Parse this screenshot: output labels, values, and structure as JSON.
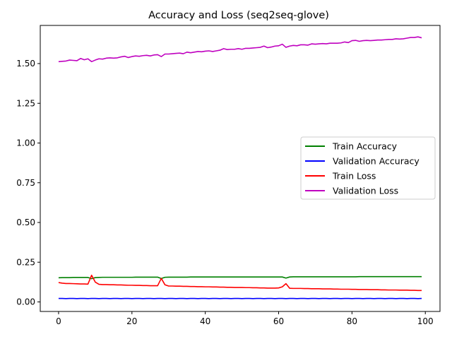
{
  "chart_data": {
    "type": "line",
    "title": "Accuracy and Loss (seq2seq-glove)",
    "xlabel": "",
    "ylabel": "",
    "xlim": [
      -5,
      104
    ],
    "ylim": [
      -0.06,
      1.74
    ],
    "xticks": [
      0,
      20,
      40,
      60,
      80,
      100
    ],
    "yticks": [
      0.0,
      0.25,
      0.5,
      0.75,
      1.0,
      1.25,
      1.5
    ],
    "ytick_labels": [
      "0.00",
      "0.25",
      "0.50",
      "0.75",
      "1.00",
      "1.25",
      "1.50"
    ],
    "grid": false,
    "legend_position": "center-right",
    "series": [
      {
        "name": "Train Accuracy",
        "color": "#008000",
        "x": [
          0,
          1,
          2,
          3,
          4,
          5,
          6,
          7,
          8,
          9,
          10,
          11,
          12,
          13,
          14,
          15,
          16,
          17,
          18,
          19,
          20,
          21,
          22,
          23,
          24,
          25,
          26,
          27,
          28,
          29,
          30,
          31,
          32,
          33,
          34,
          35,
          36,
          37,
          38,
          39,
          40,
          41,
          42,
          43,
          44,
          45,
          46,
          47,
          48,
          49,
          50,
          51,
          52,
          53,
          54,
          55,
          56,
          57,
          58,
          59,
          60,
          61,
          62,
          63,
          64,
          65,
          66,
          67,
          68,
          69,
          70,
          71,
          72,
          73,
          74,
          75,
          76,
          77,
          78,
          79,
          80,
          81,
          82,
          83,
          84,
          85,
          86,
          87,
          88,
          89,
          90,
          91,
          92,
          93,
          94,
          95,
          96,
          97,
          98,
          99
        ],
        "y": [
          0.152,
          0.153,
          0.153,
          0.153,
          0.154,
          0.154,
          0.154,
          0.154,
          0.154,
          0.146,
          0.153,
          0.154,
          0.155,
          0.155,
          0.155,
          0.155,
          0.155,
          0.155,
          0.155,
          0.155,
          0.155,
          0.156,
          0.156,
          0.156,
          0.156,
          0.156,
          0.156,
          0.156,
          0.147,
          0.155,
          0.156,
          0.156,
          0.156,
          0.156,
          0.156,
          0.156,
          0.157,
          0.157,
          0.157,
          0.157,
          0.157,
          0.157,
          0.157,
          0.157,
          0.157,
          0.157,
          0.157,
          0.157,
          0.157,
          0.157,
          0.157,
          0.157,
          0.157,
          0.157,
          0.157,
          0.157,
          0.157,
          0.157,
          0.157,
          0.157,
          0.157,
          0.157,
          0.15,
          0.157,
          0.158,
          0.158,
          0.158,
          0.158,
          0.158,
          0.158,
          0.158,
          0.158,
          0.158,
          0.158,
          0.158,
          0.158,
          0.158,
          0.158,
          0.158,
          0.158,
          0.158,
          0.158,
          0.159,
          0.159,
          0.159,
          0.159,
          0.159,
          0.159,
          0.159,
          0.159,
          0.159,
          0.159,
          0.159,
          0.159,
          0.159,
          0.159,
          0.159,
          0.159,
          0.159,
          0.159
        ]
      },
      {
        "name": "Validation Accuracy",
        "color": "#0000ff",
        "x": [
          0,
          1,
          2,
          3,
          4,
          5,
          6,
          7,
          8,
          9,
          10,
          11,
          12,
          13,
          14,
          15,
          16,
          17,
          18,
          19,
          20,
          21,
          22,
          23,
          24,
          25,
          26,
          27,
          28,
          29,
          30,
          31,
          32,
          33,
          34,
          35,
          36,
          37,
          38,
          39,
          40,
          41,
          42,
          43,
          44,
          45,
          46,
          47,
          48,
          49,
          50,
          51,
          52,
          53,
          54,
          55,
          56,
          57,
          58,
          59,
          60,
          61,
          62,
          63,
          64,
          65,
          66,
          67,
          68,
          69,
          70,
          71,
          72,
          73,
          74,
          75,
          76,
          77,
          78,
          79,
          80,
          81,
          82,
          83,
          84,
          85,
          86,
          87,
          88,
          89,
          90,
          91,
          92,
          93,
          94,
          95,
          96,
          97,
          98,
          99
        ],
        "y": [
          0.022,
          0.022,
          0.021,
          0.022,
          0.022,
          0.021,
          0.022,
          0.022,
          0.021,
          0.022,
          0.022,
          0.021,
          0.022,
          0.022,
          0.021,
          0.022,
          0.022,
          0.021,
          0.022,
          0.022,
          0.021,
          0.022,
          0.022,
          0.021,
          0.022,
          0.022,
          0.021,
          0.022,
          0.022,
          0.021,
          0.022,
          0.022,
          0.021,
          0.022,
          0.022,
          0.021,
          0.022,
          0.022,
          0.021,
          0.022,
          0.022,
          0.021,
          0.022,
          0.022,
          0.021,
          0.022,
          0.022,
          0.021,
          0.022,
          0.022,
          0.021,
          0.022,
          0.022,
          0.021,
          0.022,
          0.022,
          0.021,
          0.022,
          0.022,
          0.021,
          0.022,
          0.022,
          0.021,
          0.022,
          0.022,
          0.021,
          0.022,
          0.022,
          0.021,
          0.022,
          0.022,
          0.021,
          0.022,
          0.022,
          0.021,
          0.022,
          0.022,
          0.021,
          0.022,
          0.022,
          0.021,
          0.022,
          0.022,
          0.021,
          0.022,
          0.022,
          0.021,
          0.022,
          0.022,
          0.021,
          0.022,
          0.022,
          0.021,
          0.022,
          0.022,
          0.021,
          0.022,
          0.022,
          0.021,
          0.022
        ]
      },
      {
        "name": "Train Loss",
        "color": "#ff0000",
        "x": [
          0,
          1,
          2,
          3,
          4,
          5,
          6,
          7,
          8,
          9,
          10,
          11,
          12,
          13,
          14,
          15,
          16,
          17,
          18,
          19,
          20,
          21,
          22,
          23,
          24,
          25,
          26,
          27,
          28,
          29,
          30,
          31,
          32,
          33,
          34,
          35,
          36,
          37,
          38,
          39,
          40,
          41,
          42,
          43,
          44,
          45,
          46,
          47,
          48,
          49,
          50,
          51,
          52,
          53,
          54,
          55,
          56,
          57,
          58,
          59,
          60,
          61,
          62,
          63,
          64,
          65,
          66,
          67,
          68,
          69,
          70,
          71,
          72,
          73,
          74,
          75,
          76,
          77,
          78,
          79,
          80,
          81,
          82,
          83,
          84,
          85,
          86,
          87,
          88,
          89,
          90,
          91,
          92,
          93,
          94,
          95,
          96,
          97,
          98,
          99
        ],
        "y": [
          0.122,
          0.118,
          0.116,
          0.116,
          0.115,
          0.114,
          0.113,
          0.113,
          0.112,
          0.168,
          0.125,
          0.111,
          0.109,
          0.109,
          0.108,
          0.108,
          0.107,
          0.107,
          0.106,
          0.105,
          0.105,
          0.104,
          0.104,
          0.103,
          0.103,
          0.102,
          0.102,
          0.102,
          0.148,
          0.108,
          0.1,
          0.1,
          0.099,
          0.099,
          0.098,
          0.098,
          0.097,
          0.097,
          0.096,
          0.096,
          0.095,
          0.095,
          0.094,
          0.094,
          0.093,
          0.093,
          0.092,
          0.092,
          0.091,
          0.091,
          0.091,
          0.09,
          0.09,
          0.089,
          0.089,
          0.088,
          0.088,
          0.087,
          0.087,
          0.087,
          0.088,
          0.095,
          0.115,
          0.086,
          0.085,
          0.085,
          0.085,
          0.084,
          0.084,
          0.083,
          0.083,
          0.083,
          0.082,
          0.082,
          0.082,
          0.081,
          0.081,
          0.08,
          0.08,
          0.08,
          0.079,
          0.079,
          0.078,
          0.078,
          0.078,
          0.077,
          0.077,
          0.077,
          0.076,
          0.076,
          0.075,
          0.075,
          0.075,
          0.074,
          0.074,
          0.074,
          0.073,
          0.073,
          0.072,
          0.072
        ]
      },
      {
        "name": "Validation Loss",
        "color": "#bf00bf",
        "x": [
          0,
          1,
          2,
          3,
          4,
          5,
          6,
          7,
          8,
          9,
          10,
          11,
          12,
          13,
          14,
          15,
          16,
          17,
          18,
          19,
          20,
          21,
          22,
          23,
          24,
          25,
          26,
          27,
          28,
          29,
          30,
          31,
          32,
          33,
          34,
          35,
          36,
          37,
          38,
          39,
          40,
          41,
          42,
          43,
          44,
          45,
          46,
          47,
          48,
          49,
          50,
          51,
          52,
          53,
          54,
          55,
          56,
          57,
          58,
          59,
          60,
          61,
          62,
          63,
          64,
          65,
          66,
          67,
          68,
          69,
          70,
          71,
          72,
          73,
          74,
          75,
          76,
          77,
          78,
          79,
          80,
          81,
          82,
          83,
          84,
          85,
          86,
          87,
          88,
          89,
          90,
          91,
          92,
          93,
          94,
          95,
          96,
          97,
          98,
          99
        ],
        "y": [
          1.512,
          1.514,
          1.516,
          1.522,
          1.52,
          1.518,
          1.532,
          1.524,
          1.53,
          1.512,
          1.522,
          1.53,
          1.528,
          1.534,
          1.536,
          1.534,
          1.536,
          1.542,
          1.546,
          1.538,
          1.544,
          1.548,
          1.546,
          1.55,
          1.552,
          1.548,
          1.554,
          1.556,
          1.544,
          1.56,
          1.56,
          1.562,
          1.564,
          1.566,
          1.562,
          1.572,
          1.568,
          1.572,
          1.576,
          1.574,
          1.578,
          1.58,
          1.576,
          1.58,
          1.584,
          1.594,
          1.588,
          1.59,
          1.59,
          1.594,
          1.59,
          1.596,
          1.596,
          1.598,
          1.6,
          1.602,
          1.61,
          1.6,
          1.604,
          1.61,
          1.612,
          1.622,
          1.602,
          1.61,
          1.614,
          1.612,
          1.618,
          1.618,
          1.616,
          1.624,
          1.622,
          1.624,
          1.626,
          1.624,
          1.628,
          1.628,
          1.628,
          1.63,
          1.636,
          1.632,
          1.644,
          1.646,
          1.64,
          1.644,
          1.646,
          1.644,
          1.646,
          1.648,
          1.648,
          1.65,
          1.652,
          1.652,
          1.656,
          1.654,
          1.656,
          1.66,
          1.664,
          1.664,
          1.668,
          1.662
        ]
      }
    ]
  }
}
